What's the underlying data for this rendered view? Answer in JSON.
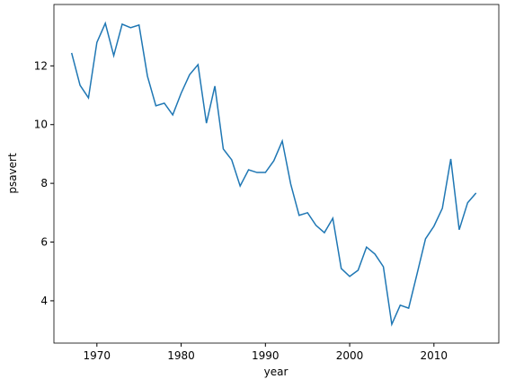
{
  "chart_data": {
    "type": "line",
    "x_label": "year",
    "y_label": "psavert",
    "x": [
      1967,
      1968,
      1969,
      1970,
      1971,
      1972,
      1973,
      1974,
      1975,
      1976,
      1977,
      1978,
      1979,
      1980,
      1981,
      1982,
      1983,
      1984,
      1985,
      1986,
      1987,
      1988,
      1989,
      1990,
      1991,
      1992,
      1993,
      1994,
      1995,
      1996,
      1997,
      1998,
      1999,
      2000,
      2001,
      2002,
      2003,
      2004,
      2005,
      2006,
      2007,
      2008,
      2009,
      2010,
      2011,
      2012,
      2013,
      2014,
      2015
    ],
    "series": [
      {
        "color": "#1f77b4",
        "values": [
          12.44,
          11.34,
          10.91,
          12.8,
          13.45,
          12.35,
          13.42,
          13.3,
          13.39,
          11.65,
          10.64,
          10.73,
          10.33,
          11.07,
          11.7,
          12.04,
          10.05,
          11.31,
          9.17,
          8.8,
          7.91,
          8.46,
          8.37,
          8.37,
          8.77,
          9.44,
          7.98,
          6.91,
          7.0,
          6.57,
          6.32,
          6.81,
          5.1,
          4.83,
          5.04,
          5.83,
          5.59,
          5.16,
          3.2,
          3.85,
          3.75,
          4.92,
          6.11,
          6.54,
          7.15,
          8.83,
          6.42,
          7.34,
          7.67
        ]
      }
    ],
    "xlim": [
      1964.9,
      2017.7
    ],
    "ylim": [
      2.56,
      14.09
    ],
    "xticks": [
      1970,
      1980,
      1990,
      2000,
      2010
    ],
    "yticks": [
      4,
      6,
      8,
      10,
      12
    ],
    "grid": false
  }
}
